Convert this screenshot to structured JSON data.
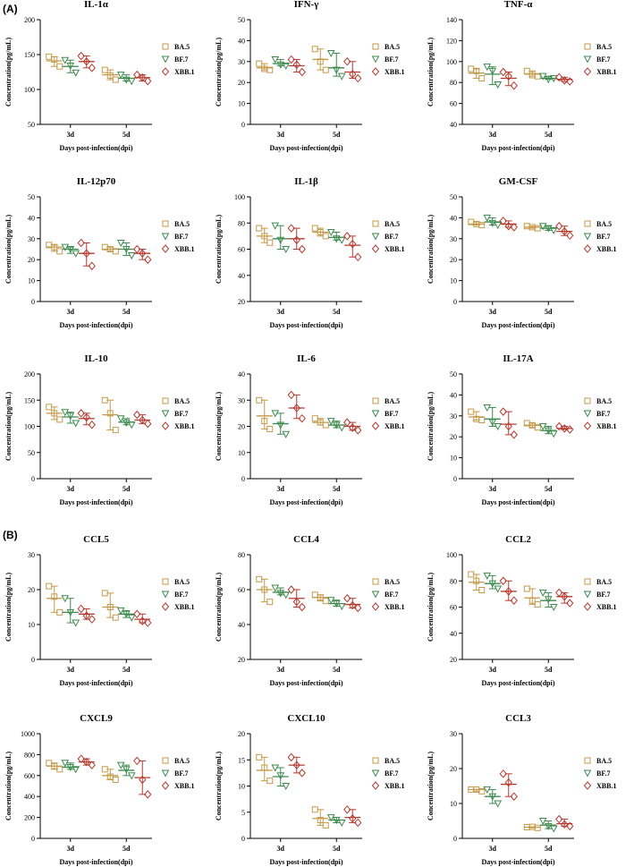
{
  "section_labels": [
    "(A)",
    "(B)"
  ],
  "legend": [
    {
      "name": "BA.5",
      "marker": "square",
      "color": "#c49a4a"
    },
    {
      "name": "BF.7",
      "marker": "triangle-down",
      "color": "#3d8a4e"
    },
    {
      "name": "XBB.1",
      "marker": "diamond",
      "color": "#b53a2f"
    }
  ],
  "xlabel": "Days post-infection(dpi)",
  "ylabel": "Concentration(pg/mL)",
  "chart_data": [
    {
      "type": "scatter",
      "title": "IL-1α",
      "categories": [
        "3d",
        "5d"
      ],
      "ylim": [
        50,
        200
      ],
      "yticks": [
        50,
        100,
        150,
        200
      ],
      "series": [
        {
          "name": "BA.5",
          "values": [
            [
              147,
              133,
              143
            ],
            [
              128,
              114,
              120
            ]
          ],
          "mean": [
            141,
            121
          ]
        },
        {
          "name": "BF.7",
          "values": [
            [
              142,
              124,
              134
            ],
            [
              121,
              112,
              114
            ]
          ],
          "mean": [
            133,
            116
          ]
        },
        {
          "name": "XBB.1",
          "values": [
            [
              148,
              131,
              140
            ],
            [
              121,
              112,
              117
            ]
          ],
          "mean": [
            140,
            117
          ]
        }
      ]
    },
    {
      "type": "scatter",
      "title": "IFN-γ",
      "categories": [
        "3d",
        "5d"
      ],
      "ylim": [
        0,
        50
      ],
      "yticks": [
        0,
        10,
        20,
        30,
        40,
        50
      ],
      "series": [
        {
          "name": "BA.5",
          "values": [
            [
              29,
              26,
              26.5
            ],
            [
              36,
              26,
              30
            ]
          ],
          "mean": [
            27,
            31
          ]
        },
        {
          "name": "BF.7",
          "values": [
            [
              31,
              28,
              28.5
            ],
            [
              34,
              23,
              26
            ]
          ],
          "mean": [
            29,
            27
          ]
        },
        {
          "name": "XBB.1",
          "values": [
            [
              31,
              25,
              28.5
            ],
            [
              30,
              22,
              24
            ]
          ],
          "mean": [
            28,
            25
          ]
        }
      ]
    },
    {
      "type": "scatter",
      "title": "TNF-α",
      "categories": [
        "3d",
        "5d"
      ],
      "ylim": [
        40,
        140
      ],
      "yticks": [
        40,
        60,
        80,
        100,
        120,
        140
      ],
      "series": [
        {
          "name": "BA.5",
          "values": [
            [
              93,
              84,
              91
            ],
            [
              91,
              86,
              87
            ]
          ],
          "mean": [
            89,
            88
          ]
        },
        {
          "name": "BF.7",
          "values": [
            [
              95,
              78,
              91
            ],
            [
              86,
              84,
              83
            ]
          ],
          "mean": [
            88,
            84
          ]
        },
        {
          "name": "XBB.1",
          "values": [
            [
              90,
              77,
              86
            ],
            [
              85,
              81,
              82
            ]
          ],
          "mean": [
            84,
            83
          ]
        }
      ]
    },
    {
      "type": "scatter",
      "title": "IL-12p70",
      "categories": [
        "3d",
        "5d"
      ],
      "ylim": [
        0,
        50
      ],
      "yticks": [
        0,
        10,
        20,
        30,
        40,
        50
      ],
      "series": [
        {
          "name": "BA.5",
          "values": [
            [
              27,
              24,
              26
            ],
            [
              26,
              24,
              25
            ]
          ],
          "mean": [
            26,
            25
          ]
        },
        {
          "name": "BF.7",
          "values": [
            [
              26,
              23,
              25
            ],
            [
              28,
              22,
              25
            ]
          ],
          "mean": [
            25,
            25
          ]
        },
        {
          "name": "XBB.1",
          "values": [
            [
              28,
              17,
              23
            ],
            [
              25,
              20,
              23
            ]
          ],
          "mean": [
            23,
            23
          ]
        }
      ]
    },
    {
      "type": "scatter",
      "title": "IL-1β",
      "categories": [
        "3d",
        "5d"
      ],
      "ylim": [
        20,
        100
      ],
      "yticks": [
        20,
        40,
        60,
        80,
        100
      ],
      "series": [
        {
          "name": "BA.5",
          "values": [
            [
              76,
              65,
              70
            ],
            [
              76,
              70,
              73
            ]
          ],
          "mean": [
            70,
            73
          ]
        },
        {
          "name": "BF.7",
          "values": [
            [
              78,
              60,
              67
            ],
            [
              73,
              67,
              68
            ]
          ],
          "mean": [
            68,
            69
          ]
        },
        {
          "name": "XBB.1",
          "values": [
            [
              76,
              60,
              67
            ],
            [
              70,
              54,
              64
            ]
          ],
          "mean": [
            68,
            63
          ]
        }
      ]
    },
    {
      "type": "scatter",
      "title": "GM-CSF",
      "categories": [
        "3d",
        "5d"
      ],
      "ylim": [
        0,
        50
      ],
      "yticks": [
        0,
        10,
        20,
        30,
        40,
        50
      ],
      "series": [
        {
          "name": "BA.5",
          "values": [
            [
              38,
              36.5,
              37
            ],
            [
              36,
              35,
              35.5
            ]
          ],
          "mean": [
            37,
            35.5
          ]
        },
        {
          "name": "BF.7",
          "values": [
            [
              40,
              36.5,
              37.5
            ],
            [
              36,
              34,
              35
            ]
          ],
          "mean": [
            38,
            35
          ]
        },
        {
          "name": "XBB.1",
          "values": [
            [
              38.5,
              35.5,
              36
            ],
            [
              36,
              31.5,
              33.5
            ]
          ],
          "mean": [
            37,
            33.5
          ]
        }
      ]
    },
    {
      "type": "scatter",
      "title": "IL-10",
      "categories": [
        "3d",
        "5d"
      ],
      "ylim": [
        0,
        200
      ],
      "yticks": [
        0,
        50,
        100,
        150,
        200
      ],
      "series": [
        {
          "name": "BA.5",
          "values": [
            [
              137,
              113,
              125
            ],
            [
              150,
              93,
              125
            ]
          ],
          "mean": [
            125,
            122
          ]
        },
        {
          "name": "BF.7",
          "values": [
            [
              127,
              106,
              120
            ],
            [
              115,
              103,
              107
            ]
          ],
          "mean": [
            118,
            108
          ]
        },
        {
          "name": "XBB.1",
          "values": [
            [
              125,
              103,
              117
            ],
            [
              122,
              105,
              112
            ]
          ],
          "mean": [
            115,
            112
          ]
        }
      ]
    },
    {
      "type": "scatter",
      "title": "IL-6",
      "categories": [
        "3d",
        "5d"
      ],
      "ylim": [
        0,
        40
      ],
      "yticks": [
        0,
        10,
        20,
        30,
        40
      ],
      "series": [
        {
          "name": "BA.5",
          "values": [
            [
              30,
              19,
              22
            ],
            [
              23,
              20.5,
              21.5
            ]
          ],
          "mean": [
            24,
            21.5
          ]
        },
        {
          "name": "BF.7",
          "values": [
            [
              25,
              17,
              20.5
            ],
            [
              22,
              19.5,
              20.5
            ]
          ],
          "mean": [
            21,
            20.5
          ]
        },
        {
          "name": "XBB.1",
          "values": [
            [
              32,
              23,
              27
            ],
            [
              21.5,
              18.5,
              19.5
            ]
          ],
          "mean": [
            27,
            20
          ]
        }
      ]
    },
    {
      "type": "scatter",
      "title": "IL-17A",
      "categories": [
        "3d",
        "5d"
      ],
      "ylim": [
        0,
        50
      ],
      "yticks": [
        0,
        10,
        20,
        30,
        40,
        50
      ],
      "series": [
        {
          "name": "BA.5",
          "values": [
            [
              32,
              28,
              28.5
            ],
            [
              26.5,
              24.5,
              25.5
            ]
          ],
          "mean": [
            29.5,
            25.5
          ]
        },
        {
          "name": "BF.7",
          "values": [
            [
              34,
              25,
              27
            ],
            [
              25,
              21.5,
              23
            ]
          ],
          "mean": [
            28.5,
            23
          ]
        },
        {
          "name": "XBB.1",
          "values": [
            [
              32,
              21,
              25
            ],
            [
              25,
              23.5,
              24
            ]
          ],
          "mean": [
            26,
            24
          ]
        }
      ]
    },
    {
      "type": "scatter",
      "title": "CCL5",
      "categories": [
        "3d",
        "5d"
      ],
      "ylim": [
        0,
        30
      ],
      "yticks": [
        0,
        10,
        20,
        30
      ],
      "series": [
        {
          "name": "BA.5",
          "values": [
            [
              21,
              13.5,
              18
            ],
            [
              19,
              12,
              15
            ]
          ],
          "mean": [
            17.5,
            15
          ]
        },
        {
          "name": "BF.7",
          "values": [
            [
              17.5,
              10.5,
              13.5
            ],
            [
              14,
              12,
              13
            ]
          ],
          "mean": [
            13.5,
            13
          ]
        },
        {
          "name": "XBB.1",
          "values": [
            [
              14.5,
              11.5,
              12.5
            ],
            [
              13,
              10.5,
              11
            ]
          ],
          "mean": [
            13,
            11.5
          ]
        }
      ]
    },
    {
      "type": "scatter",
      "title": "CCL4",
      "categories": [
        "3d",
        "5d"
      ],
      "ylim": [
        20,
        80
      ],
      "yticks": [
        20,
        40,
        60,
        80
      ],
      "series": [
        {
          "name": "BA.5",
          "values": [
            [
              66,
              53,
              60
            ],
            [
              57,
              53.5,
              55.5
            ]
          ],
          "mean": [
            60,
            55.5
          ]
        },
        {
          "name": "BF.7",
          "values": [
            [
              61,
              57,
              58
            ],
            [
              54,
              50.5,
              52
            ]
          ],
          "mean": [
            58.5,
            52
          ]
        },
        {
          "name": "XBB.1",
          "values": [
            [
              60,
              50,
              53
            ],
            [
              55,
              49.5,
              51
            ]
          ],
          "mean": [
            55,
            51.5
          ]
        }
      ]
    },
    {
      "type": "scatter",
      "title": "CCL2",
      "categories": [
        "3d",
        "5d"
      ],
      "ylim": [
        20,
        100
      ],
      "yticks": [
        20,
        40,
        60,
        80,
        100
      ],
      "series": [
        {
          "name": "BA.5",
          "values": [
            [
              85,
              73,
              80
            ],
            [
              74,
              62,
              65
            ]
          ],
          "mean": [
            79,
            67
          ]
        },
        {
          "name": "BF.7",
          "values": [
            [
              84,
              74,
              78
            ],
            [
              71,
              60,
              66
            ]
          ],
          "mean": [
            78,
            65
          ]
        },
        {
          "name": "XBB.1",
          "values": [
            [
              80,
              65,
              72
            ],
            [
              71,
              63,
              68
            ]
          ],
          "mean": [
            72,
            68
          ]
        }
      ]
    },
    {
      "type": "scatter",
      "title": "CXCL9",
      "categories": [
        "3d",
        "5d"
      ],
      "ylim": [
        0,
        1000
      ],
      "yticks": [
        0,
        200,
        400,
        600,
        800,
        1000
      ],
      "series": [
        {
          "name": "BA.5",
          "values": [
            [
              720,
              660,
              690
            ],
            [
              660,
              560,
              590
            ]
          ],
          "mean": [
            690,
            600
          ]
        },
        {
          "name": "BF.7",
          "values": [
            [
              720,
              660,
              680
            ],
            [
              700,
              600,
              660
            ]
          ],
          "mean": [
            680,
            650
          ]
        },
        {
          "name": "XBB.1",
          "values": [
            [
              760,
              700,
              730
            ],
            [
              740,
              420,
              560
            ]
          ],
          "mean": [
            730,
            580
          ]
        }
      ]
    },
    {
      "type": "scatter",
      "title": "CXCL10",
      "categories": [
        "3d",
        "5d"
      ],
      "ylim": [
        0,
        20
      ],
      "yticks": [
        0,
        5,
        10,
        15,
        20
      ],
      "series": [
        {
          "name": "BA.5",
          "values": [
            [
              15.5,
              11,
              13.5
            ],
            [
              5.5,
              2.5,
              3.5
            ]
          ],
          "mean": [
            13,
            3.8
          ]
        },
        {
          "name": "BF.7",
          "values": [
            [
              13.5,
              10,
              12
            ],
            [
              4,
              3,
              3.5
            ]
          ],
          "mean": [
            11.8,
            3.5
          ]
        },
        {
          "name": "XBB.1",
          "values": [
            [
              15.5,
              12.5,
              14
            ],
            [
              5.5,
              3,
              3.8
            ]
          ],
          "mean": [
            14,
            4
          ]
        }
      ]
    },
    {
      "type": "scatter",
      "title": "CCL3",
      "categories": [
        "3d",
        "5d"
      ],
      "ylim": [
        0,
        30
      ],
      "yticks": [
        0,
        10,
        20,
        30
      ],
      "series": [
        {
          "name": "BA.5",
          "values": [
            [
              14,
              13.5,
              14
            ],
            [
              3.2,
              3,
              3.3
            ]
          ],
          "mean": [
            14,
            3.2
          ]
        },
        {
          "name": "BF.7",
          "values": [
            [
              14,
              10,
              12
            ],
            [
              5,
              2.8,
              3.5
            ]
          ],
          "mean": [
            12,
            3.8
          ]
        },
        {
          "name": "XBB.1",
          "values": [
            [
              18.5,
              12,
              16
            ],
            [
              5.5,
              3.5,
              4
            ]
          ],
          "mean": [
            15.5,
            4.2
          ]
        }
      ]
    }
  ]
}
